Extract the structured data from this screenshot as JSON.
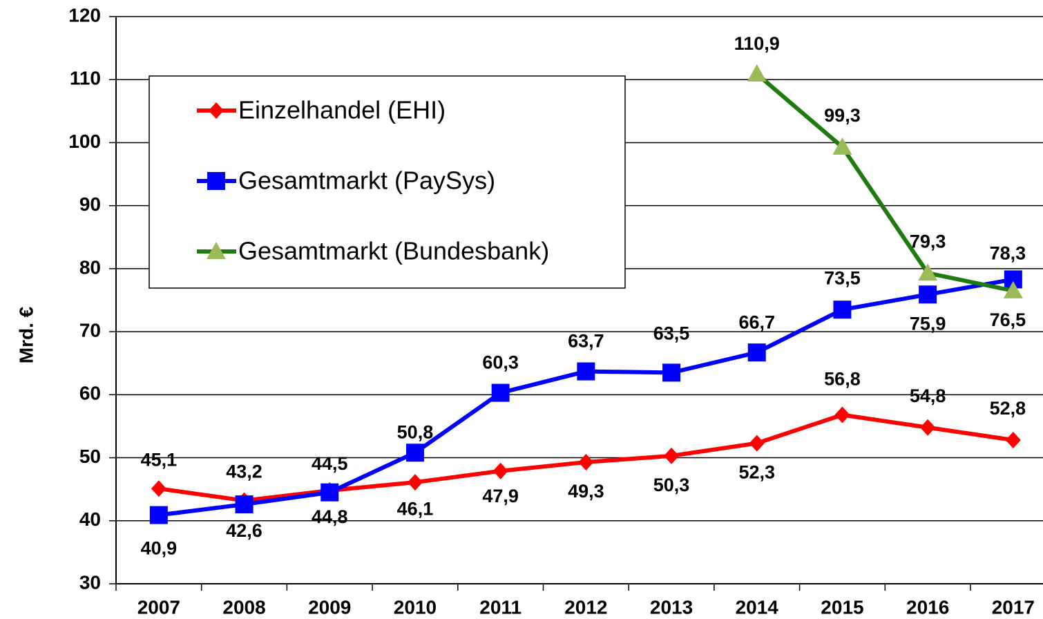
{
  "chart_data": {
    "type": "line",
    "ylabel": "Mrd. €",
    "categories": [
      "2007",
      "2008",
      "2009",
      "2010",
      "2011",
      "2012",
      "2013",
      "2014",
      "2015",
      "2016",
      "2017"
    ],
    "series": [
      {
        "name": "Einzelhandel (EHI)",
        "color": "#ff0000",
        "marker": "diamond",
        "values": [
          45.1,
          43.2,
          44.8,
          46.1,
          47.9,
          49.3,
          50.3,
          52.3,
          56.8,
          54.8,
          52.8
        ],
        "value_labels": [
          "45,1",
          "43,2",
          "44,8",
          "46,1",
          "47,9",
          "49,3",
          "50,3",
          "52,3",
          "56,8",
          "54,8",
          "52,8"
        ]
      },
      {
        "name": "Gesamtmarkt (PaySys)",
        "color": "#0000ff",
        "marker": "square",
        "values": [
          40.9,
          42.6,
          44.5,
          50.8,
          60.3,
          63.7,
          63.5,
          66.7,
          73.5,
          75.9,
          78.3
        ],
        "value_labels": [
          "40,9",
          "42,6",
          "44,5",
          "50,8",
          "60,3",
          "63,7",
          "63,5",
          "66,7",
          "73,5",
          "75,9",
          "78,3"
        ]
      },
      {
        "name": "Gesamtmarkt (Bundesbank)",
        "color": "#1f7a0f",
        "marker_color": "#9bbb59",
        "marker": "triangle",
        "values": [
          null,
          null,
          null,
          null,
          null,
          null,
          null,
          110.9,
          99.3,
          79.3,
          76.5
        ],
        "value_labels": [
          null,
          null,
          null,
          null,
          null,
          null,
          null,
          "110,9",
          "99,3",
          "79,3",
          "76,5"
        ]
      }
    ],
    "ylim": [
      30,
      120
    ],
    "yticks": [
      30,
      40,
      50,
      60,
      70,
      80,
      90,
      100,
      110,
      120
    ],
    "grid": true,
    "legend": "upper left"
  }
}
